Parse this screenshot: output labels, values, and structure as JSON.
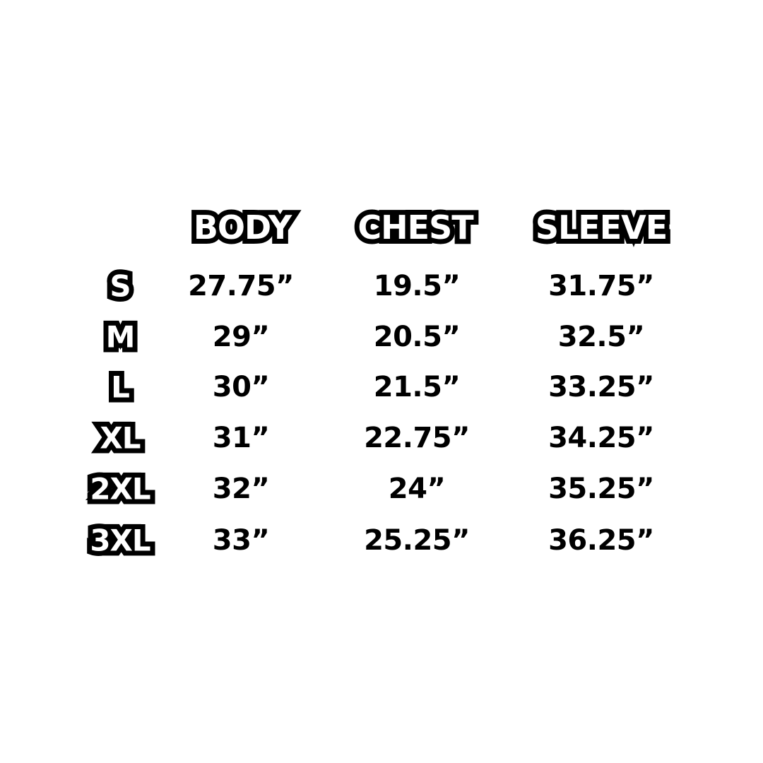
{
  "headers": [
    "BODY",
    "CHEST",
    "SLEEVE"
  ],
  "rows": [
    {
      "size": "S",
      "body": "27.75”",
      "chest": "19.5”",
      "sleeve": "31.75”"
    },
    {
      "size": "M",
      "body": "29”",
      "chest": "20.5”",
      "sleeve": "32.5”"
    },
    {
      "size": "L",
      "body": "30”",
      "chest": "21.5”",
      "sleeve": "33.25”"
    },
    {
      "size": "XL",
      "body": "31”",
      "chest": "22.75”",
      "sleeve": "34.25”"
    },
    {
      "size": "2XL",
      "body": "32”",
      "chest": "24”",
      "sleeve": "35.25”"
    },
    {
      "size": "3XL",
      "body": "33”",
      "chest": "25.25”",
      "sleeve": "36.25”"
    }
  ],
  "colors": {
    "background": "#ffffff",
    "text": "#000000",
    "outline_fill": "#ffffff"
  }
}
